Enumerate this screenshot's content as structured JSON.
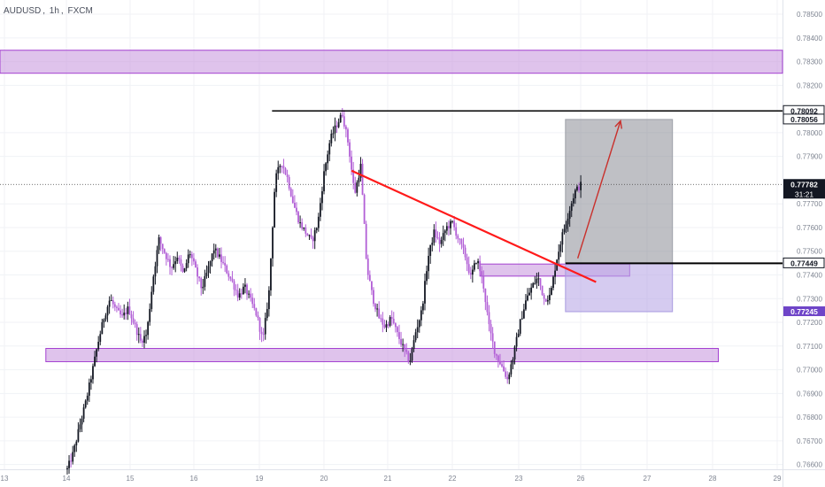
{
  "header": {
    "symbol": "AUDUSD",
    "interval": "1h",
    "exchange": "FXCM",
    "sep": ","
  },
  "colors": {
    "background": "#ffffff",
    "grid": "#f0f2f6",
    "axis_text": "#7e8491",
    "candle_up": "#131722",
    "candle_down": "#b25fd6",
    "zone_fill": "#c99be0",
    "zone_stroke": "#a33fd1",
    "trendline": "#ff1a1a",
    "level_line": "#000000",
    "arrow": "#c9302c",
    "profit_zone": "#8a8d95",
    "stop_zone": "#b9a8e6",
    "price_label_bg": "#131722",
    "price_label_purple": "#6f45c8"
  },
  "chart_data": {
    "type": "candlestick",
    "x_ticks": [
      "13",
      "14",
      "15",
      "16",
      "19",
      "20",
      "21",
      "22",
      "23",
      "26",
      "27",
      "28",
      "29"
    ],
    "y_ticks": [
      "0.78500",
      "0.78400",
      "0.78300",
      "0.78200",
      "0.78000",
      "0.77900",
      "0.77700",
      "0.77600",
      "0.77500",
      "0.77400",
      "0.77300",
      "0.77200",
      "0.77100",
      "0.77000",
      "0.76900",
      "0.76800",
      "0.76700",
      "0.76600"
    ],
    "ylim": [
      0.7658,
      0.7856
    ],
    "x_range": [
      0,
      128
    ],
    "grid": true,
    "price_labels": {
      "top_level": "0.78092",
      "target": "0.78056",
      "current_price": "0.77782",
      "countdown": "31:21",
      "entry": "0.77449",
      "stop": "0.77245"
    },
    "candle_path": [
      [
        11,
        0.7658
      ],
      [
        12,
        0.7665
      ],
      [
        13,
        0.7676
      ],
      [
        14,
        0.7686
      ],
      [
        15,
        0.7698
      ],
      [
        16,
        0.7711
      ],
      [
        17,
        0.7722
      ],
      [
        18,
        0.773
      ],
      [
        19,
        0.7725
      ],
      [
        20,
        0.7722
      ],
      [
        21,
        0.7726
      ],
      [
        22,
        0.7719
      ],
      [
        23,
        0.7712
      ],
      [
        24,
        0.7715
      ],
      [
        25,
        0.7738
      ],
      [
        26,
        0.7755
      ],
      [
        27,
        0.7749
      ],
      [
        28,
        0.7743
      ],
      [
        29,
        0.7748
      ],
      [
        30,
        0.774
      ],
      [
        31,
        0.775
      ],
      [
        32,
        0.7742
      ],
      [
        33,
        0.7734
      ],
      [
        34,
        0.7742
      ],
      [
        35,
        0.7751
      ],
      [
        36,
        0.7747
      ],
      [
        37,
        0.7742
      ],
      [
        38,
        0.7737
      ],
      [
        39,
        0.7731
      ],
      [
        40,
        0.7735
      ],
      [
        41,
        0.7729
      ],
      [
        42,
        0.7723
      ],
      [
        43,
        0.7712
      ],
      [
        44,
        0.7733
      ],
      [
        45,
        0.778
      ],
      [
        46,
        0.7788
      ],
      [
        47,
        0.7781
      ],
      [
        48,
        0.777
      ],
      [
        49,
        0.7762
      ],
      [
        50,
        0.7758
      ],
      [
        51,
        0.7754
      ],
      [
        52,
        0.7762
      ],
      [
        53,
        0.7783
      ],
      [
        54,
        0.7797
      ],
      [
        55,
        0.7803
      ],
      [
        56,
        0.7808
      ],
      [
        57,
        0.7795
      ],
      [
        58,
        0.7774
      ],
      [
        59,
        0.7786
      ],
      [
        60,
        0.7743
      ],
      [
        61,
        0.773
      ],
      [
        62,
        0.7722
      ],
      [
        63,
        0.7718
      ],
      [
        64,
        0.7722
      ],
      [
        65,
        0.7715
      ],
      [
        66,
        0.7709
      ],
      [
        67,
        0.7703
      ],
      [
        68,
        0.7716
      ],
      [
        69,
        0.7725
      ],
      [
        70,
        0.7747
      ],
      [
        71,
        0.7758
      ],
      [
        72,
        0.7753
      ],
      [
        73,
        0.776
      ],
      [
        74,
        0.7762
      ],
      [
        75,
        0.7755
      ],
      [
        76,
        0.7749
      ],
      [
        77,
        0.7739
      ],
      [
        78,
        0.7747
      ],
      [
        79,
        0.7737
      ],
      [
        80,
        0.7718
      ],
      [
        81,
        0.7707
      ],
      [
        82,
        0.7702
      ],
      [
        83,
        0.7696
      ],
      [
        84,
        0.7706
      ],
      [
        85,
        0.7719
      ],
      [
        86,
        0.7729
      ],
      [
        87,
        0.7735
      ],
      [
        88,
        0.7739
      ],
      [
        89,
        0.773
      ],
      [
        90,
        0.7731
      ],
      [
        91,
        0.7746
      ],
      [
        92,
        0.7757
      ],
      [
        93,
        0.7766
      ],
      [
        94,
        0.7775
      ],
      [
        95,
        0.7778
      ]
    ],
    "zones": [
      {
        "x0": 0,
        "x1": 128,
        "y0": 0.78251,
        "y1": 0.78348
      },
      {
        "x0": 7.5,
        "x1": 117.5,
        "y0": 0.77034,
        "y1": 0.7709
      },
      {
        "x0": 78.5,
        "x1": 103,
        "y0": 0.77395,
        "y1": 0.77446
      }
    ],
    "trendline": {
      "x0": 57.5,
      "y0": 0.7784,
      "x1": 97.5,
      "y1": 0.7737
    },
    "top_level_line": {
      "x0": 44.5,
      "x1": 128,
      "y": 0.78092
    },
    "position": {
      "x0": 92.5,
      "x1": 110,
      "entry": 0.77449,
      "target": 0.78056,
      "stop": 0.77245,
      "entry_line_x1": 128
    },
    "arrow": {
      "x0": 94.5,
      "y0": 0.7747,
      "x1": 101.5,
      "y1": 0.7805
    }
  }
}
